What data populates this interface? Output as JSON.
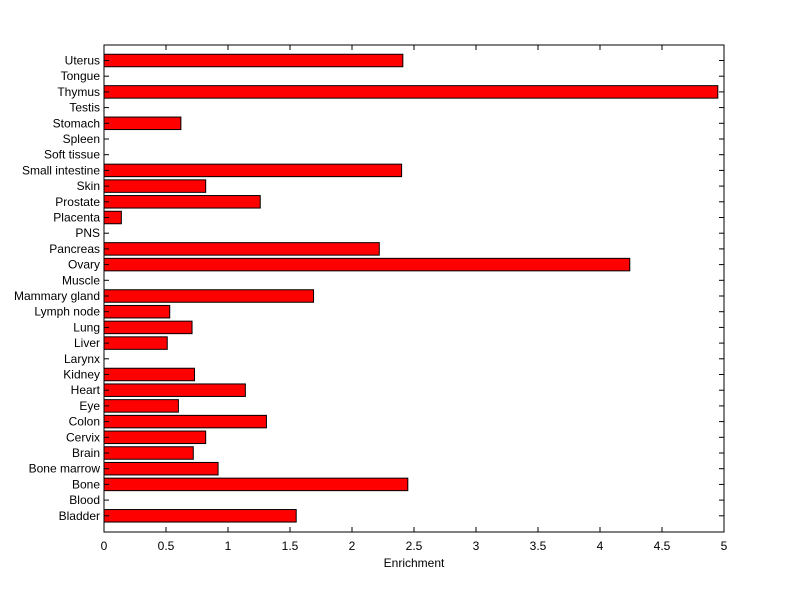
{
  "chart_data": {
    "type": "bar",
    "orientation": "horizontal",
    "title": "",
    "xlabel": "Enrichment",
    "ylabel": "",
    "xlim": [
      0,
      5
    ],
    "xticks": [
      "0",
      "0.5",
      "1",
      "1.5",
      "2",
      "2.5",
      "3",
      "3.5",
      "4",
      "4.5",
      "5"
    ],
    "grid": false,
    "bar_color": "#ff0000",
    "categories": [
      "Uterus",
      "Tongue",
      "Thymus",
      "Testis",
      "Stomach",
      "Spleen",
      "Soft tissue",
      "Small intestine",
      "Skin",
      "Prostate",
      "Placenta",
      "PNS",
      "Pancreas",
      "Ovary",
      "Muscle",
      "Mammary gland",
      "Lymph node",
      "Lung",
      "Liver",
      "Larynx",
      "Kidney",
      "Heart",
      "Eye",
      "Colon",
      "Cervix",
      "Brain",
      "Bone marrow",
      "Bone",
      "Blood",
      "Bladder"
    ],
    "values": [
      2.41,
      0,
      4.95,
      0,
      0.62,
      0,
      0,
      2.4,
      0.82,
      1.26,
      0.14,
      0,
      2.22,
      4.24,
      0,
      1.69,
      0.53,
      0.71,
      0.51,
      0,
      0.73,
      1.14,
      0.6,
      1.31,
      0.82,
      0.72,
      0.92,
      2.45,
      0,
      1.55
    ]
  }
}
